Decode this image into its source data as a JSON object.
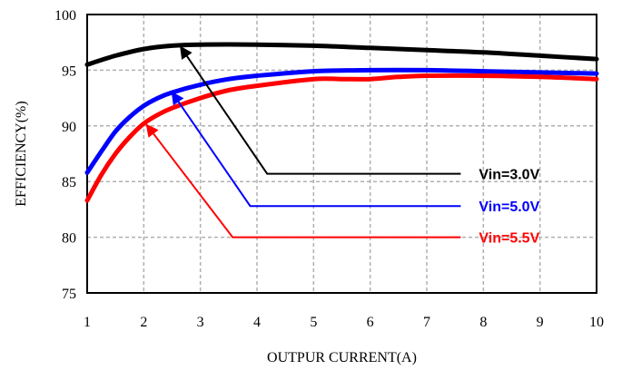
{
  "chart_data": {
    "type": "line",
    "title": "",
    "xlabel": "OUTPUR CURRENT(A)",
    "ylabel": "EFFICIENCY(%)",
    "xlim": [
      1,
      10
    ],
    "ylim": [
      75,
      100
    ],
    "xticks": [
      1,
      2,
      3,
      4,
      5,
      6,
      7,
      8,
      9,
      10
    ],
    "yticks": [
      75,
      80,
      85,
      90,
      95,
      100
    ],
    "grid": true,
    "series": [
      {
        "name": "Vin=3.0V",
        "color": "#000000",
        "x": [
          1,
          1.5,
          2,
          2.5,
          3,
          4,
          5,
          6,
          7,
          8,
          9,
          10
        ],
        "y": [
          95.5,
          96.3,
          96.9,
          97.2,
          97.3,
          97.3,
          97.2,
          97.0,
          96.8,
          96.6,
          96.3,
          96.0
        ]
      },
      {
        "name": "Vin=5.0V",
        "color": "#0000ff",
        "x": [
          1,
          1.25,
          1.5,
          1.75,
          2,
          2.25,
          2.5,
          3,
          3.5,
          4,
          5,
          6,
          7,
          8,
          9,
          10
        ],
        "y": [
          85.8,
          87.7,
          89.5,
          90.8,
          91.8,
          92.5,
          93.0,
          93.7,
          94.2,
          94.5,
          94.9,
          95.0,
          95.0,
          94.9,
          94.8,
          94.7
        ]
      },
      {
        "name": "Vin=5.5V",
        "color": "#ff0000",
        "x": [
          1,
          1.25,
          1.5,
          1.75,
          2,
          2.25,
          2.5,
          3,
          3.5,
          4,
          5,
          5.5,
          6,
          6.5,
          7,
          8,
          9,
          10
        ],
        "y": [
          83.3,
          85.6,
          87.5,
          89.0,
          90.2,
          91.0,
          91.6,
          92.5,
          93.2,
          93.6,
          94.2,
          94.2,
          94.2,
          94.4,
          94.5,
          94.5,
          94.4,
          94.2
        ]
      }
    ],
    "annotations": [
      {
        "label": "Vin=3.0V",
        "color": "#000000",
        "arrow_tip": {
          "x": 2.65,
          "y": 97.1
        },
        "line_start": {
          "x": 7.6,
          "y": 85.7
        },
        "elbow": {
          "x": 4.18,
          "y": 85.7
        }
      },
      {
        "label": "Vin=5.0V",
        "color": "#0000ff",
        "arrow_tip": {
          "x": 2.5,
          "y": 93.0
        },
        "line_start": {
          "x": 7.6,
          "y": 82.8
        },
        "elbow": {
          "x": 3.88,
          "y": 82.8
        }
      },
      {
        "label": "Vin=5.5V",
        "color": "#ff0000",
        "arrow_tip": {
          "x": 2.05,
          "y": 90.1
        },
        "line_start": {
          "x": 7.6,
          "y": 80.0
        },
        "elbow": {
          "x": 3.57,
          "y": 80.0
        }
      }
    ]
  }
}
